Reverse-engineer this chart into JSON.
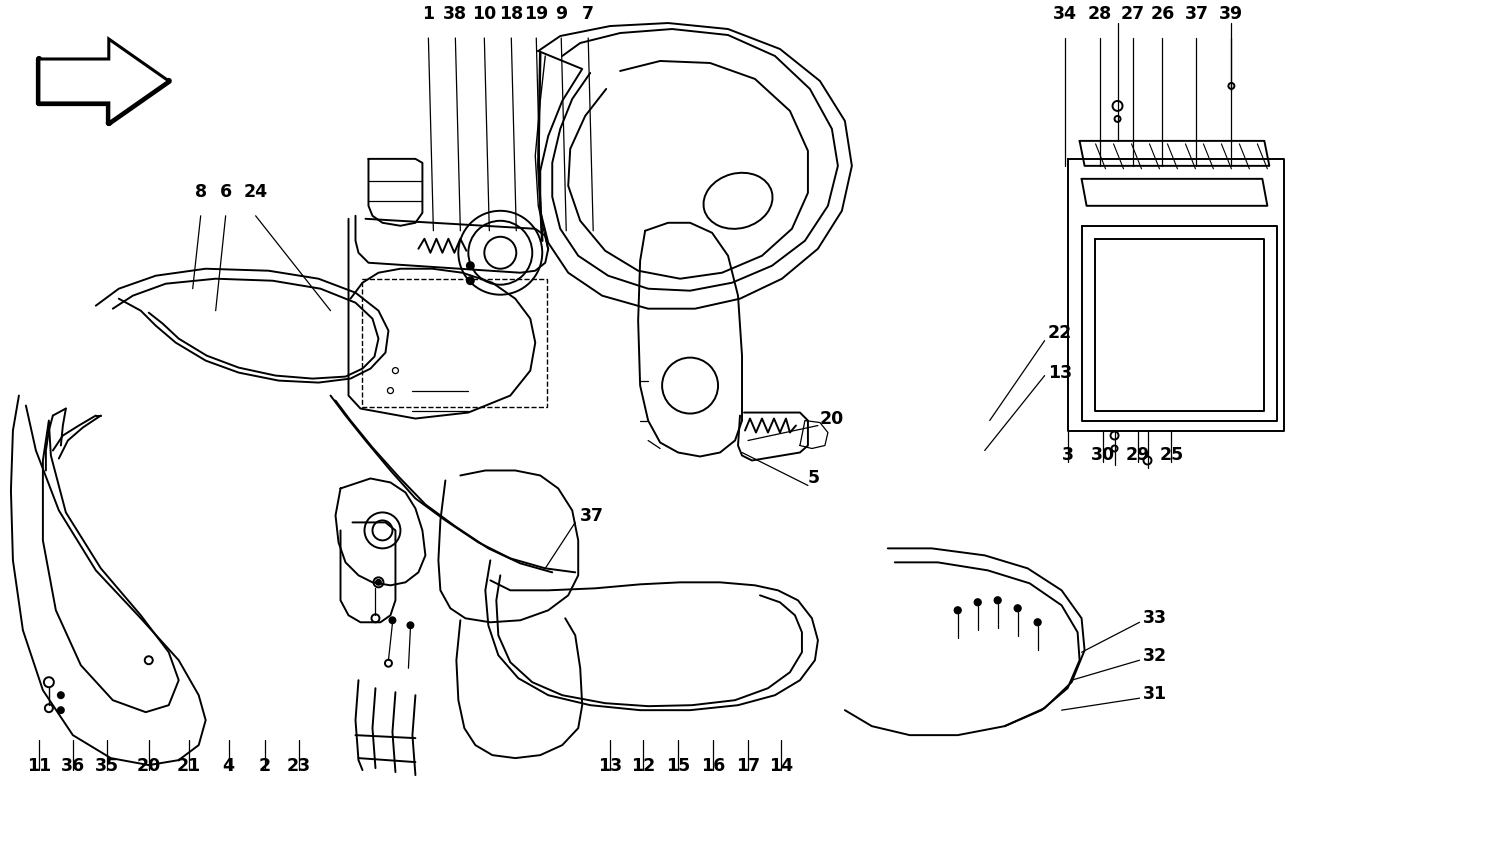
{
  "bg_color": "#ffffff",
  "line_color": "#000000",
  "lw_main": 1.4,
  "lw_thick": 3.0,
  "lw_thin": 0.9,
  "label_fontsize": 12.5,
  "top_labels": {
    "labels": [
      "1",
      "38",
      "10",
      "18",
      "19",
      "9",
      "7"
    ],
    "x": [
      428,
      455,
      484,
      511,
      536,
      561,
      588
    ],
    "y": [
      22,
      22,
      22,
      22,
      22,
      22,
      22
    ]
  },
  "top_right_labels": {
    "labels": [
      "34",
      "28",
      "27",
      "26",
      "37",
      "39"
    ],
    "x": [
      1065,
      1100,
      1133,
      1163,
      1197,
      1232
    ],
    "y": [
      22,
      22,
      22,
      22,
      22,
      22
    ]
  },
  "left_mid_labels": {
    "labels": [
      "8",
      "6",
      "24"
    ],
    "x": [
      200,
      225,
      255
    ],
    "y": [
      200,
      200,
      200
    ]
  },
  "right_mid_labels": {
    "labels": [
      "22",
      "13"
    ],
    "x": [
      1048,
      1048
    ],
    "y": [
      332,
      372
    ]
  },
  "center_labels": {
    "labels": [
      "20",
      "5",
      "37"
    ],
    "x": [
      820,
      808,
      580
    ],
    "y": [
      418,
      478,
      516
    ]
  },
  "right_side_labels": {
    "labels": [
      "3",
      "30",
      "29",
      "25"
    ],
    "x": [
      1068,
      1103,
      1138,
      1172
    ],
    "y": [
      464,
      464,
      464,
      464
    ]
  },
  "lower_right_labels": {
    "labels": [
      "33",
      "32",
      "31"
    ],
    "x": [
      1143,
      1143,
      1143
    ],
    "y": [
      618,
      656,
      694
    ]
  },
  "bottom_left_labels": {
    "labels": [
      "11",
      "36",
      "35",
      "20",
      "21",
      "4",
      "2",
      "23"
    ],
    "x": [
      38,
      72,
      106,
      148,
      188,
      228,
      264,
      298
    ],
    "y": [
      775,
      775,
      775,
      775,
      775,
      775,
      775,
      775
    ]
  },
  "bottom_mid_labels": {
    "labels": [
      "13",
      "12",
      "15",
      "16",
      "17",
      "14"
    ],
    "x": [
      610,
      643,
      678,
      713,
      748,
      781
    ],
    "y": [
      775,
      775,
      775,
      775,
      775,
      775
    ]
  }
}
